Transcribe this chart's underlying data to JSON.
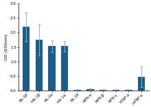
{
  "categories": [
    "hIL-1β",
    "mIL-1β",
    "hIL-1α",
    "mIL-1α",
    "hIL-18",
    "hIFN-α",
    "hIFN-β",
    "hIFN-γ",
    "hTNF-α",
    "mTNF-α"
  ],
  "values": [
    2.2,
    1.75,
    1.53,
    1.53,
    0.04,
    0.06,
    0.04,
    0.04,
    0.04,
    0.48
  ],
  "errors": [
    0.5,
    0.55,
    0.2,
    0.18,
    0.02,
    0.02,
    0.02,
    0.02,
    0.02,
    0.35
  ],
  "bar_color": "#1b5e8e",
  "error_color": "#7ab8d4",
  "ylabel": "OD (630nm)",
  "ylim": [
    0,
    3.0
  ],
  "yticks": [
    0.0,
    0.5,
    1.0,
    1.5,
    2.0,
    2.5,
    3.0
  ],
  "figsize": [
    2.2,
    1.56
  ],
  "dpi": 100
}
